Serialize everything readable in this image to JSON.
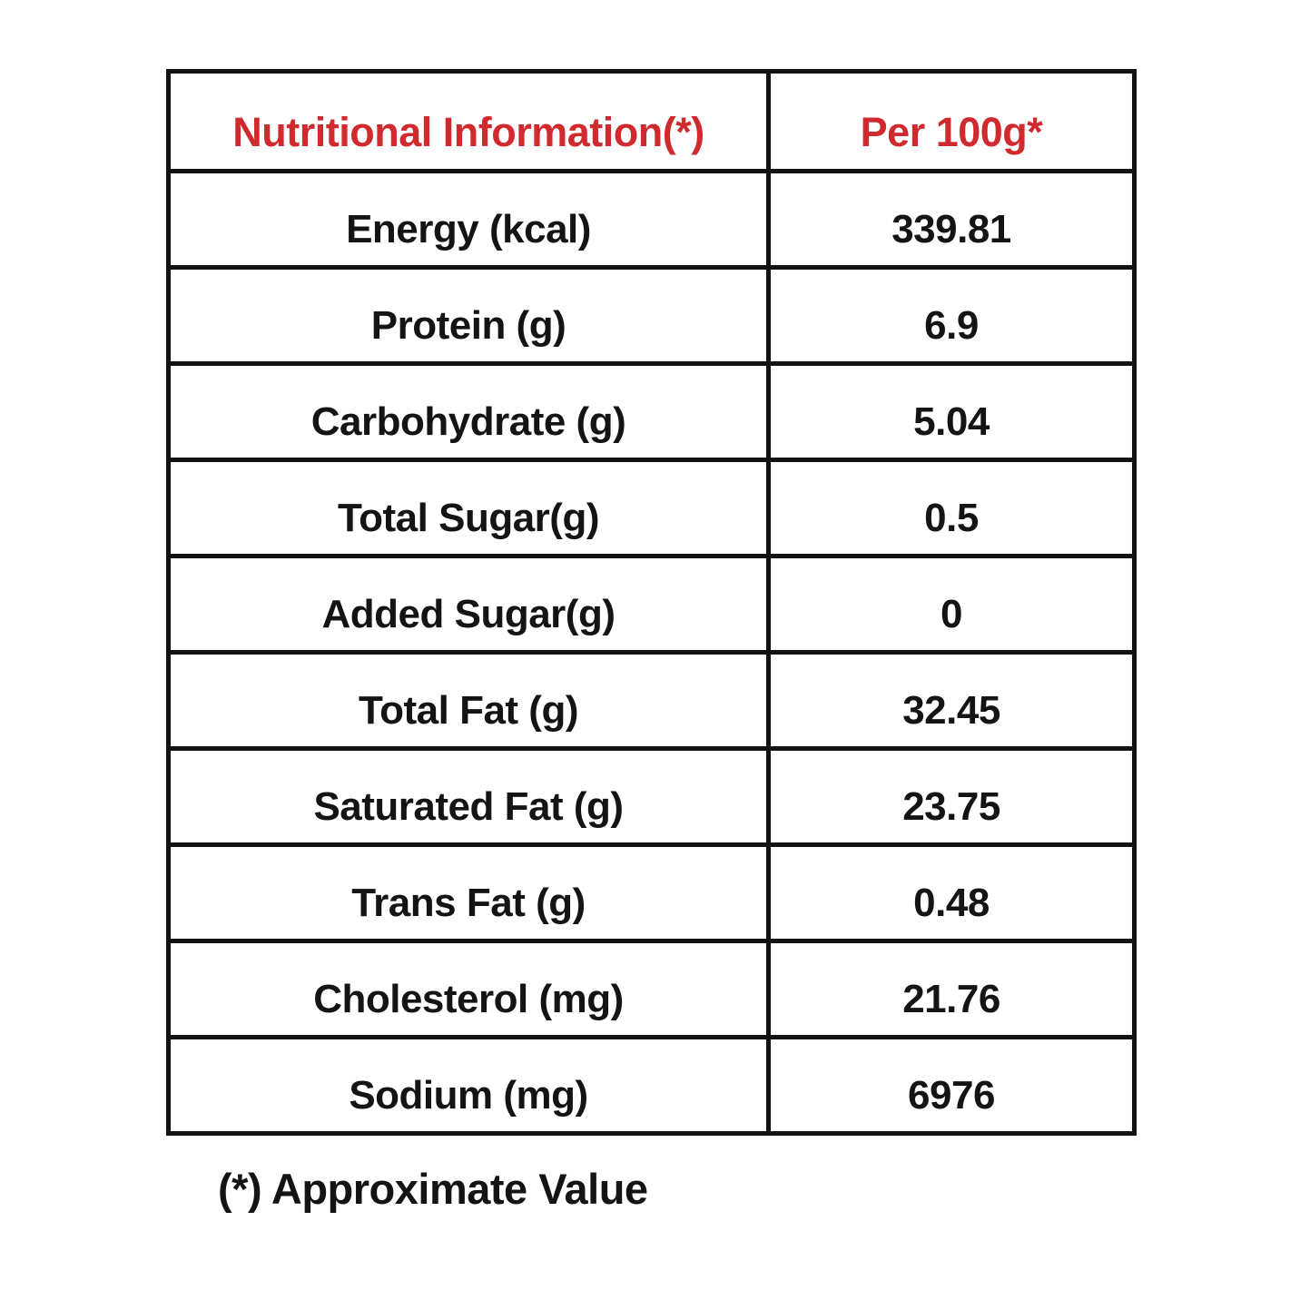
{
  "table": {
    "header": {
      "col1": "Nutritional Information(*)",
      "col2": "Per 100g*"
    },
    "rows": [
      {
        "label": "Energy (kcal)",
        "value": "339.81"
      },
      {
        "label": "Protein (g)",
        "value": "6.9"
      },
      {
        "label": "Carbohydrate (g)",
        "value": "5.04"
      },
      {
        "label": "Total Sugar(g)",
        "value": "0.5"
      },
      {
        "label": "Added Sugar(g)",
        "value": "0"
      },
      {
        "label": "Total Fat (g)",
        "value": "32.45"
      },
      {
        "label": "Saturated Fat (g)",
        "value": "23.75"
      },
      {
        "label": "Trans Fat (g)",
        "value": "0.48"
      },
      {
        "label": "Cholesterol (mg)",
        "value": "21.76"
      },
      {
        "label": "Sodium (mg)",
        "value": "6976"
      }
    ]
  },
  "footer": {
    "note": "(*) Approximate Value"
  },
  "colors": {
    "header_text": "#d02a2e",
    "border": "#131313",
    "body_text": "#141414",
    "background": "#ffffff"
  }
}
